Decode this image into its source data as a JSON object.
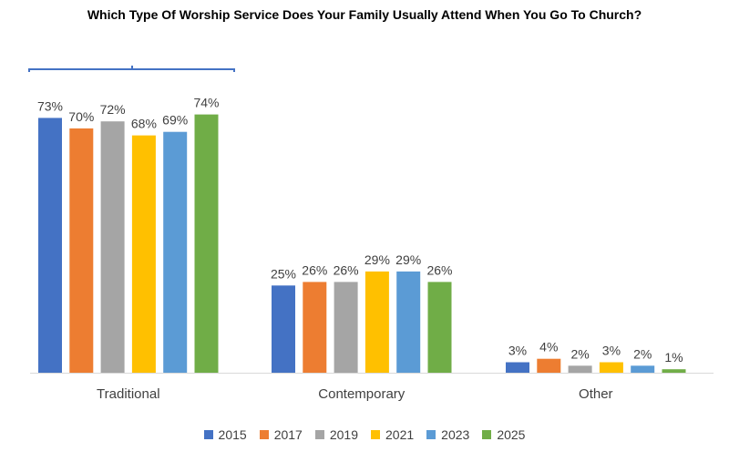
{
  "chart_data": {
    "type": "bar",
    "title": "Which Type Of Worship Service Does Your Family Usually Attend When You Go To Church?",
    "categories": [
      "Traditional",
      "Contemporary",
      "Other"
    ],
    "series": [
      {
        "name": "2015",
        "color": "#4472C4",
        "values": [
          73,
          25,
          3
        ],
        "labels": [
          "73%",
          "25%",
          "3%"
        ]
      },
      {
        "name": "2017",
        "color": "#ED7D31",
        "values": [
          70,
          26,
          4
        ],
        "labels": [
          "70%",
          "26%",
          "4%"
        ]
      },
      {
        "name": "2019",
        "color": "#A5A5A5",
        "values": [
          72,
          26,
          2
        ],
        "labels": [
          "72%",
          "26%",
          "2%"
        ]
      },
      {
        "name": "2021",
        "color": "#FFC000",
        "values": [
          68,
          29,
          3
        ],
        "labels": [
          "68%",
          "29%",
          "3%"
        ]
      },
      {
        "name": "2023",
        "color": "#5B9BD5",
        "values": [
          69,
          29,
          2
        ],
        "labels": [
          "69%",
          "29%",
          "2%"
        ]
      },
      {
        "name": "2025",
        "color": "#70AD47",
        "values": [
          74,
          26,
          1
        ],
        "labels": [
          "74%",
          "26%",
          "1%"
        ]
      }
    ],
    "ylim": [
      0,
      100
    ],
    "legend_position": "bottom",
    "grid": false
  }
}
